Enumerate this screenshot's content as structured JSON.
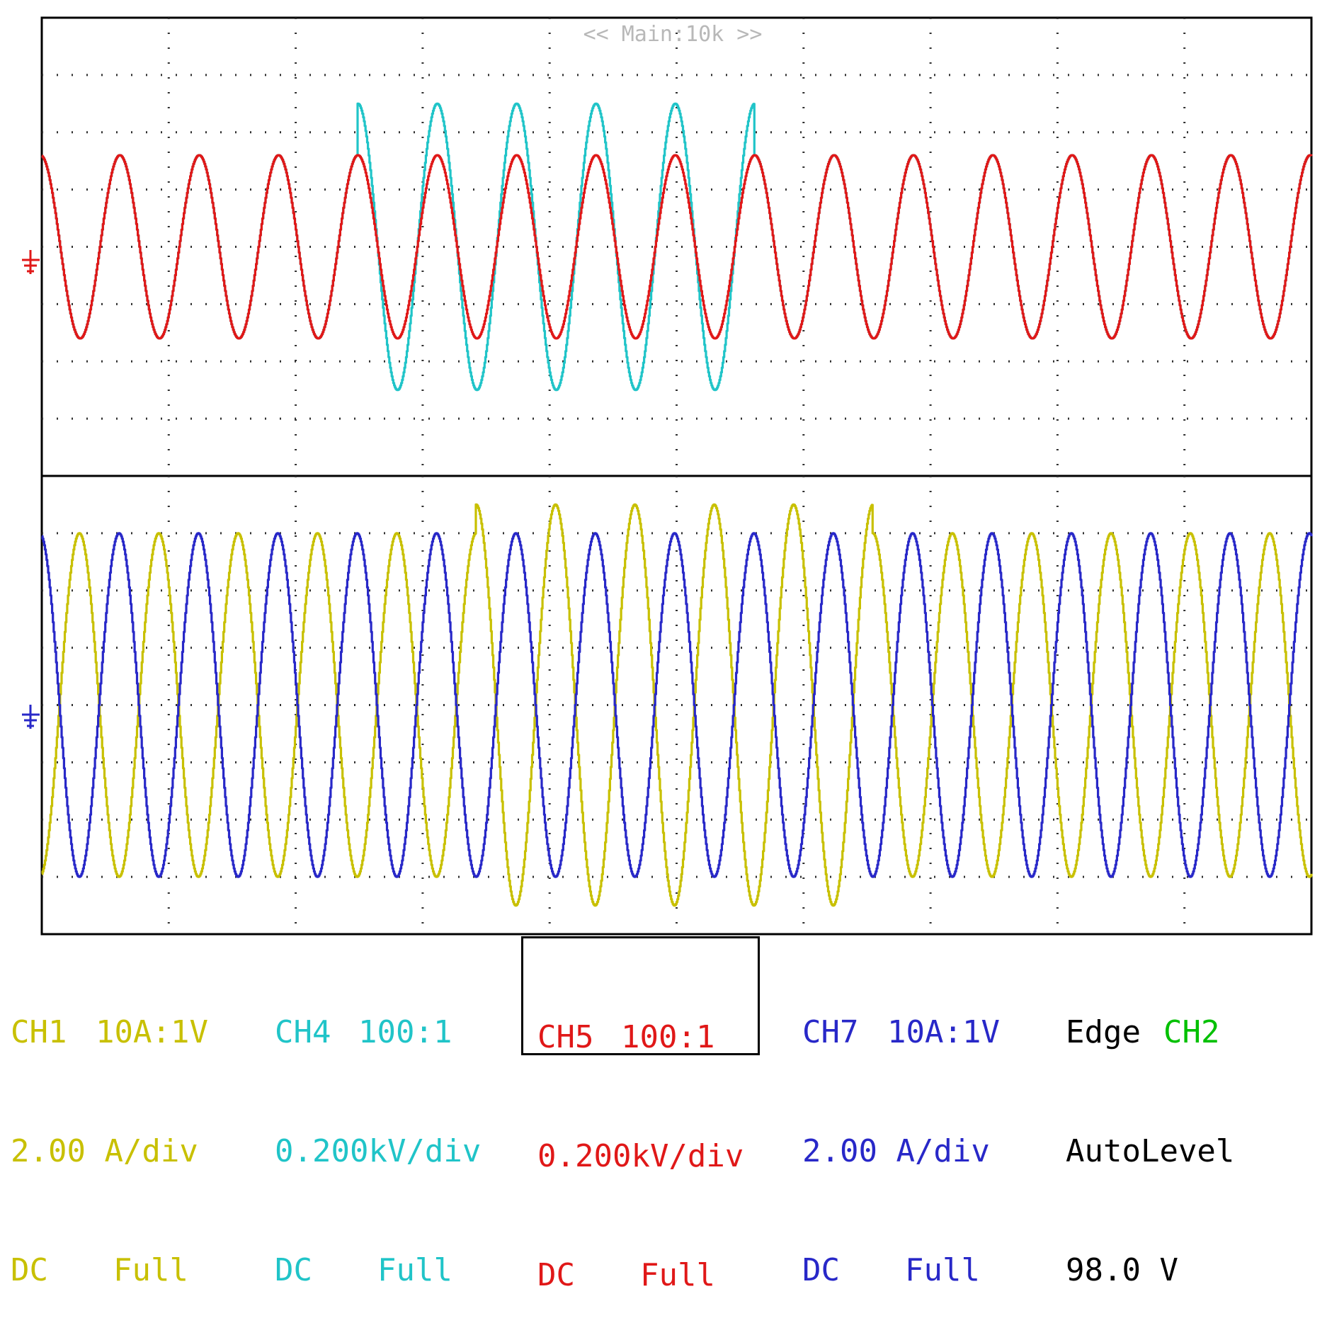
{
  "header": {
    "timebase_label": "<< Main:10k >>"
  },
  "colors": {
    "ch1": "#c8c000",
    "ch4": "#20c4c8",
    "ch5": "#e01818",
    "ch7": "#2828c8",
    "trigger_ch2": "#00c000",
    "grid": "#303030"
  },
  "channels": {
    "ch1": {
      "name": "CH1",
      "probe": "10A:1V",
      "scale": "2.00 A/div",
      "coupling": "DC",
      "bw": "Full"
    },
    "ch4": {
      "name": "CH4",
      "probe": "100:1",
      "scale": "0.200kV/div",
      "coupling": "DC",
      "bw": "Full"
    },
    "ch5": {
      "name": "CH5",
      "probe": "100:1",
      "scale": "0.200kV/div",
      "coupling": "DC",
      "bw": "Full"
    },
    "ch7": {
      "name": "CH7",
      "probe": "10A:1V",
      "scale": "2.00 A/div",
      "coupling": "DC",
      "bw": "Full"
    }
  },
  "trigger": {
    "type": "Edge",
    "source": "CH2",
    "mode": "AutoLevel",
    "level": "98.0 V",
    "slope_icon": "rising-edge-icon"
  },
  "chart_data": [
    {
      "type": "line",
      "panel": "upper",
      "x_divisions": 10,
      "y_divisions": 8,
      "series": [
        {
          "channel": "CH4",
          "color": "#20c4c8",
          "cycles": 16,
          "amplitude_div": 1.6,
          "burst_cycles": [
            4,
            5,
            6,
            7,
            8
          ],
          "burst_amplitude_div": 2.5,
          "scale": "0.200kV/div"
        },
        {
          "channel": "CH5",
          "color": "#e01818",
          "cycles": 16,
          "amplitude_div": 1.6,
          "scale": "0.200kV/div"
        }
      ]
    },
    {
      "type": "line",
      "panel": "lower",
      "x_divisions": 10,
      "y_divisions": 8,
      "series": [
        {
          "channel": "CH1",
          "color": "#c8c000",
          "cycles": 16,
          "amplitude_div": 3.0,
          "burst_cycles": [
            5,
            6,
            7,
            8,
            9
          ],
          "burst_amplitude_div": 3.5,
          "scale": "2.00 A/div"
        },
        {
          "channel": "CH7",
          "color": "#2828c8",
          "cycles": 16,
          "amplitude_div": 3.0,
          "scale": "2.00 A/div"
        }
      ]
    }
  ]
}
